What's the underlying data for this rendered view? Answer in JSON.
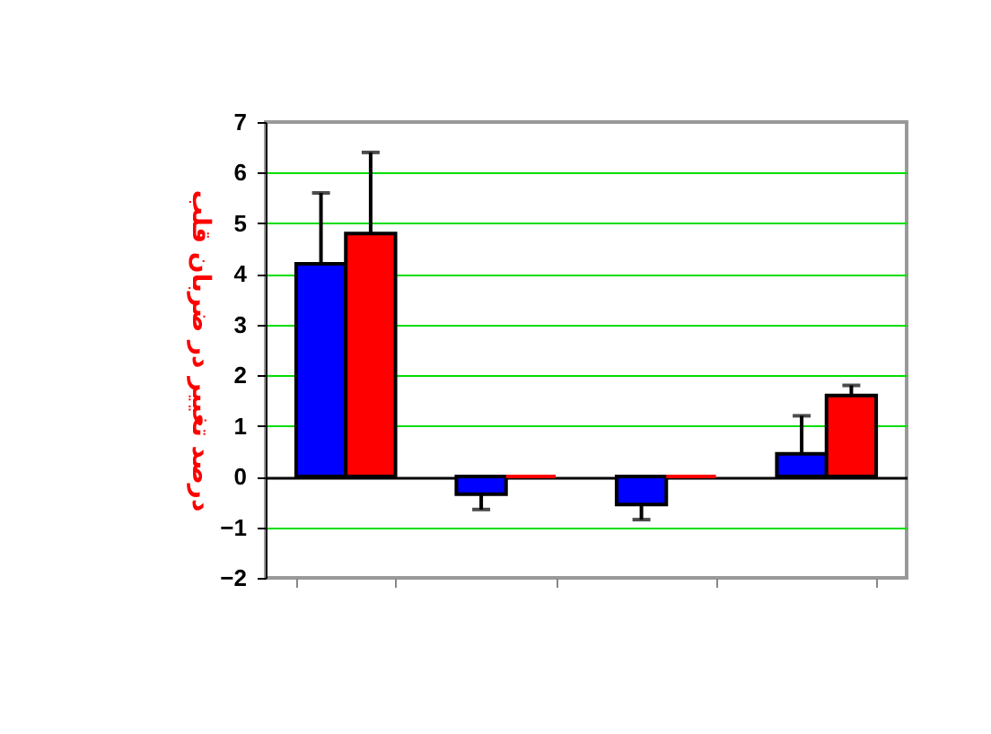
{
  "chart_data": {
    "type": "bar",
    "ylabel": "درصد تغییر در ضربان قلب",
    "categories": [
      null,
      null,
      null,
      null
    ],
    "series": [
      {
        "color": "#0000ff",
        "values": [
          4.2,
          -0.35,
          -0.55,
          0.45
        ],
        "errors": [
          [
            4.2,
            5.6
          ],
          [
            -0.65,
            -0.35
          ],
          [
            -0.85,
            -0.55
          ],
          [
            0.45,
            1.2
          ]
        ]
      },
      {
        "color": "#ff0000",
        "values": [
          4.8,
          0,
          0,
          1.6
        ],
        "errors": [
          [
            4.8,
            6.4
          ],
          null,
          null,
          [
            1.6,
            1.8
          ]
        ]
      }
    ],
    "ylim": [
      -2,
      7
    ],
    "yticks": [
      -2,
      -1,
      0,
      1,
      2,
      3,
      4,
      5,
      6,
      7
    ],
    "grid": "y",
    "legend": false
  }
}
